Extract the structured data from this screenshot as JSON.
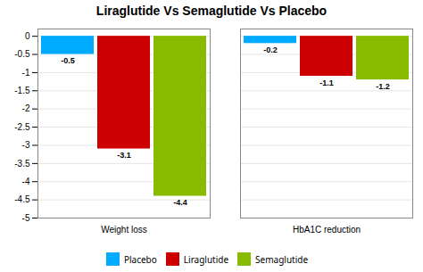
{
  "chart_data": {
    "type": "bar",
    "title": "Liraglutide  Vs Semaglutide Vs Placebo",
    "categories": [
      "Weight loss",
      "HbA1C reduction"
    ],
    "series": [
      {
        "name": "Placebo",
        "color": "#00AAFF",
        "values": [
          -0.5,
          -0.2
        ]
      },
      {
        "name": "Liraglutide",
        "color": "#CC0000",
        "values": [
          -3.1,
          -1.1
        ]
      },
      {
        "name": "Semaglutide",
        "color": "#88BB00",
        "values": [
          -4.4,
          -1.2
        ]
      }
    ],
    "ylim": [
      -5,
      0.2
    ],
    "yticks": [
      0,
      -0.5,
      -1,
      -1.5,
      -2,
      -2.5,
      -3,
      -3.5,
      -4,
      -4.5,
      -5
    ],
    "grid": true,
    "legend": "bottom",
    "data_labels": true
  }
}
